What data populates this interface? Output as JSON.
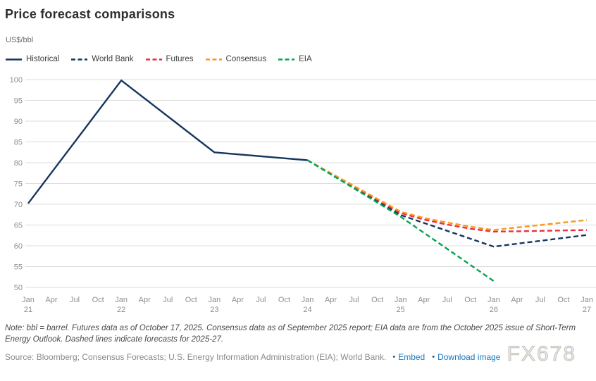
{
  "colors": {
    "navy": "#17375e",
    "red": "#e92f3f",
    "orange": "#f79a1d",
    "green": "#00a651",
    "grid": "#dcdcdc",
    "axis_text": "#8f8f8f",
    "link": "#1878be"
  },
  "chart_data": {
    "type": "line",
    "title": "Price forecast comparisons",
    "ylabel": "US$/bbl",
    "xlabel": "",
    "ylim": [
      50,
      100
    ],
    "y_ticks": [
      50,
      55,
      60,
      65,
      70,
      75,
      80,
      85,
      90,
      95,
      100
    ],
    "grid": "horizontal",
    "legend_position": "top",
    "x_unit": "quarter index from Jan 2021 (4 = one year)",
    "x_ticks": [
      {
        "month": "Jan",
        "year": "21"
      },
      {
        "month": "Apr"
      },
      {
        "month": "Jul"
      },
      {
        "month": "Oct"
      },
      {
        "month": "Jan",
        "year": "22"
      },
      {
        "month": "Apr"
      },
      {
        "month": "Jul"
      },
      {
        "month": "Oct"
      },
      {
        "month": "Jan",
        "year": "23"
      },
      {
        "month": "Apr"
      },
      {
        "month": "Jul"
      },
      {
        "month": "Oct"
      },
      {
        "month": "Jan",
        "year": "24"
      },
      {
        "month": "Apr"
      },
      {
        "month": "Jul"
      },
      {
        "month": "Oct"
      },
      {
        "month": "Jan",
        "year": "25"
      },
      {
        "month": "Apr"
      },
      {
        "month": "Jul"
      },
      {
        "month": "Oct"
      },
      {
        "month": "Jan",
        "year": "26"
      },
      {
        "month": "Apr"
      },
      {
        "month": "Jul"
      },
      {
        "month": "Oct"
      },
      {
        "month": "Jan",
        "year": "27"
      }
    ],
    "series": [
      {
        "name": "Historical",
        "color": "#17375e",
        "dashed": false,
        "points": [
          [
            0,
            70.2
          ],
          [
            4,
            99.8
          ],
          [
            8,
            82.5
          ],
          [
            12,
            80.6
          ]
        ]
      },
      {
        "name": "World Bank",
        "color": "#17375e",
        "dashed": true,
        "points": [
          [
            12,
            80.6
          ],
          [
            16,
            67.4
          ],
          [
            20,
            59.8
          ],
          [
            24,
            62.6
          ]
        ]
      },
      {
        "name": "Futures",
        "color": "#e92f3f",
        "dashed": true,
        "points": [
          [
            12,
            80.6
          ],
          [
            16,
            67.9
          ],
          [
            17,
            66.3
          ],
          [
            18,
            65.1
          ],
          [
            19,
            64.1
          ],
          [
            20,
            63.4
          ],
          [
            21,
            63.5
          ],
          [
            22,
            63.6
          ],
          [
            23,
            63.7
          ],
          [
            24,
            63.8
          ]
        ]
      },
      {
        "name": "Consensus",
        "color": "#f79a1d",
        "dashed": true,
        "points": [
          [
            12,
            80.6
          ],
          [
            16,
            68.2
          ],
          [
            17,
            66.7
          ],
          [
            18,
            65.6
          ],
          [
            19,
            64.6
          ],
          [
            20,
            63.8
          ],
          [
            21,
            64.4
          ],
          [
            22,
            65.0
          ],
          [
            23,
            65.6
          ],
          [
            24,
            66.2
          ]
        ]
      },
      {
        "name": "EIA",
        "color": "#00a651",
        "dashed": true,
        "points": [
          [
            12,
            80.6
          ],
          [
            16,
            67.0
          ],
          [
            20,
            51.5
          ]
        ]
      }
    ]
  },
  "footer": {
    "note": "Note: bbl = barrel. Futures data as of October 17, 2025. Consensus data as of September 2025 report; EIA data are from the October 2025 issue of Short-Term Energy Outlook. Dashed lines indicate forecasts for 2025-27.",
    "source": "Source: Bloomberg; Consensus Forecasts; U.S. Energy Information Administration (EIA); World Bank.",
    "links": [
      "Embed",
      "Download image"
    ],
    "watermark": "FX678"
  }
}
